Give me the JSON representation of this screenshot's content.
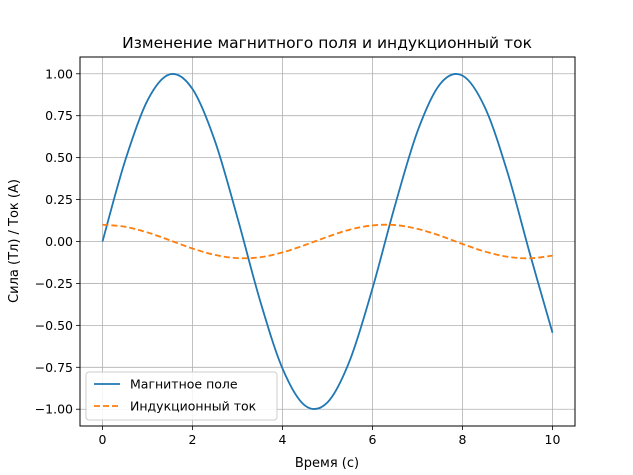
{
  "chart_data": {
    "type": "line",
    "title": "Изменение магнитного поля и индукционный ток",
    "xlabel": "Время (с)",
    "ylabel": "Сила (Тл) / Ток (А)",
    "xlim": [
      -0.5,
      10.5
    ],
    "ylim": [
      -1.1,
      1.1
    ],
    "xticks": [
      0,
      2,
      4,
      6,
      8,
      10
    ],
    "xtick_labels": [
      "0",
      "2",
      "4",
      "6",
      "8",
      "10"
    ],
    "yticks": [
      1.0,
      0.75,
      0.5,
      0.25,
      0.0,
      -0.25,
      -0.5,
      -0.75,
      -1.0
    ],
    "ytick_labels": [
      "1.00",
      "0.75",
      "0.50",
      "0.25",
      "0.00",
      "−0.25",
      "−0.50",
      "−0.75",
      "−1.00"
    ],
    "grid": true,
    "legend_position": "lower-left",
    "x": [
      0,
      0.5,
      1,
      1.5,
      2,
      2.5,
      3,
      3.5,
      4,
      4.5,
      5,
      5.5,
      6,
      6.5,
      7,
      7.5,
      8,
      8.5,
      9,
      9.5,
      10
    ],
    "series": [
      {
        "name": "Магнитное поле",
        "color": "#1f77b4",
        "style": "solid",
        "values": [
          0.0,
          0.479,
          0.841,
          0.997,
          0.909,
          0.598,
          0.141,
          -0.351,
          -0.757,
          -0.978,
          -0.959,
          -0.706,
          -0.279,
          0.215,
          0.657,
          0.938,
          0.989,
          0.798,
          0.412,
          -0.075,
          -0.544
        ]
      },
      {
        "name": "Индукционный ток",
        "color": "#ff7f0e",
        "style": "dashed",
        "values": [
          0.1,
          0.088,
          0.054,
          0.007,
          -0.042,
          -0.08,
          -0.099,
          -0.094,
          -0.065,
          -0.021,
          0.028,
          0.071,
          0.096,
          0.098,
          0.075,
          0.035,
          -0.015,
          -0.06,
          -0.091,
          -0.1,
          -0.084
        ]
      }
    ]
  }
}
